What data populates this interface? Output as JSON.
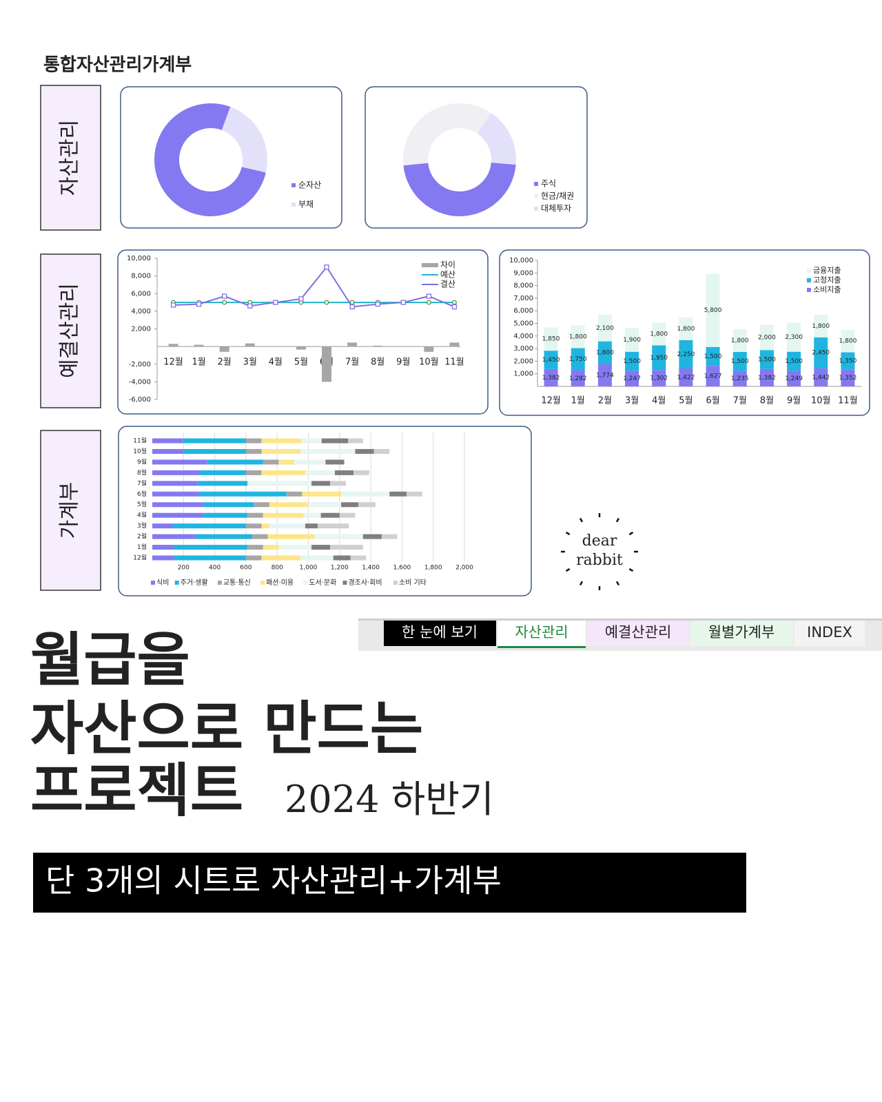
{
  "header": {
    "title": "통합자산관리가계부"
  },
  "sections": [
    "자산관리",
    "예결산관리",
    "가계부"
  ],
  "chart_data": [
    {
      "type": "donut",
      "categories": [
        "순자산",
        "부채"
      ],
      "values": [
        77,
        23
      ],
      "colors": [
        "#8479f0",
        "#e3e1fa"
      ]
    },
    {
      "type": "donut",
      "categories": [
        "주식",
        "현금/채권",
        "대체투자"
      ],
      "values": [
        47,
        36,
        17
      ],
      "colors": [
        "#8479f0",
        "#efeff4",
        "#e3e1fa"
      ]
    },
    {
      "type": "combo",
      "categories": [
        "12월",
        "1월",
        "2월",
        "3월",
        "4월",
        "5월",
        "6월",
        "7월",
        "8월",
        "9월",
        "10월",
        "11월"
      ],
      "series": [
        {
          "name": "차이",
          "kind": "bar",
          "color": "#a6a6a6",
          "values": [
            300,
            200,
            -600,
            350,
            0,
            -350,
            -4000,
            450,
            100,
            0,
            -600,
            450
          ]
        },
        {
          "name": "예산",
          "kind": "line",
          "marker": "circle",
          "color": "#1fb5c9",
          "values": [
            5000,
            5000,
            5000,
            5000,
            5000,
            5000,
            5000,
            5000,
            5000,
            5000,
            5000,
            5000
          ]
        },
        {
          "name": "결산",
          "kind": "line",
          "marker": "square",
          "color": "#7c6fe0",
          "values": [
            4700,
            4800,
            5700,
            4600,
            5000,
            5400,
            9000,
            4500,
            4800,
            5000,
            5700,
            4500
          ]
        }
      ],
      "ylim": [
        -6000,
        10000
      ],
      "yticks": [
        {
          "value": -6000,
          "label": "-6,000"
        },
        {
          "value": -4000,
          "label": "-4,000"
        },
        {
          "value": -2000,
          "label": "-2,000"
        },
        {
          "value": 2000,
          "label": "2,000"
        },
        {
          "value": 4000,
          "label": "4,000"
        },
        {
          "value": 6000,
          "label": "6,000"
        },
        {
          "value": 8000,
          "label": "8,000"
        },
        {
          "value": 10000,
          "label": "10,000"
        }
      ]
    },
    {
      "type": "stacked_bar",
      "categories": [
        "12월",
        "1월",
        "2월",
        "3월",
        "4월",
        "5월",
        "6월",
        "7월",
        "8월",
        "9월",
        "10월",
        "11월"
      ],
      "series": [
        {
          "name": "소비지출",
          "color": "#8479f0",
          "values": [
            1382,
            1282,
            1774,
            1247,
            1302,
            1422,
            1627,
            1235,
            1382,
            1249,
            1442,
            1352
          ],
          "value_labels": [
            "1,382",
            "1,282",
            "1,774",
            "1,247",
            "1,302",
            "1,422",
            "1,627",
            "1,235",
            "1,382",
            "1,249",
            "1,442",
            "1,352"
          ]
        },
        {
          "name": "고정지출",
          "color": "#1fb5e0",
          "values": [
            1450,
            1750,
            1800,
            1500,
            1950,
            2250,
            1500,
            1500,
            1500,
            1500,
            2450,
            1350
          ],
          "value_labels": [
            "1,450",
            "1,750",
            "1,800",
            "1,500",
            "1,950",
            "2,250",
            "1,500",
            "1,500",
            "1,500",
            "1,500",
            "2,450",
            "1,350"
          ]
        },
        {
          "name": "금융지출",
          "color": "#e4f6f0",
          "values": [
            1850,
            1800,
            2100,
            1900,
            1800,
            1800,
            5800,
            1800,
            2000,
            2300,
            1800,
            1800
          ],
          "value_labels": [
            "1,850",
            "1,800",
            "2,100",
            "1,900",
            "1,800",
            "1,800",
            "5,800",
            "1,800",
            "2,000",
            "2,300",
            "1,800",
            "1,800"
          ]
        }
      ],
      "ylim": [
        0,
        10000
      ],
      "yticks": [
        {
          "value": 1000,
          "label": "1,000"
        },
        {
          "value": 2000,
          "label": "2,000"
        },
        {
          "value": 3000,
          "label": "3,000"
        },
        {
          "value": 4000,
          "label": "4,000"
        },
        {
          "value": 5000,
          "label": "5,000"
        },
        {
          "value": 6000,
          "label": "6,000"
        },
        {
          "value": 7000,
          "label": "7,000"
        },
        {
          "value": 8000,
          "label": "8,000"
        },
        {
          "value": 9000,
          "label": "9,000"
        },
        {
          "value": 10000,
          "label": "10,000"
        }
      ]
    },
    {
      "type": "stacked_barh",
      "categories": [
        "12월",
        "1월",
        "2월",
        "3월",
        "4월",
        "5월",
        "6월",
        "7월",
        "8월",
        "9월",
        "10월",
        "11월"
      ],
      "series": [
        {
          "name": "식비",
          "color": "#8479f0",
          "values": [
            140,
            140,
            280,
            130,
            330,
            330,
            300,
            290,
            300,
            350,
            200,
            195
          ]
        },
        {
          "name": "주거·생활",
          "color": "#1fb5e0",
          "values": [
            460,
            470,
            360,
            470,
            280,
            320,
            560,
            320,
            300,
            360,
            400,
            405
          ]
        },
        {
          "name": "교통·통신",
          "color": "#a6a6a6",
          "values": [
            100,
            100,
            100,
            100,
            100,
            100,
            100,
            0,
            100,
            100,
            100,
            100
          ]
        },
        {
          "name": "패션·미용",
          "color": "#fde68a",
          "values": [
            250,
            100,
            300,
            50,
            260,
            250,
            250,
            0,
            280,
            100,
            250,
            255
          ]
        },
        {
          "name": "도서·문화",
          "color": "#e6f6f2",
          "values": [
            210,
            210,
            310,
            230,
            110,
            210,
            310,
            410,
            190,
            200,
            350,
            130
          ]
        },
        {
          "name": "경조사·회비",
          "color": "#7f7f7f",
          "values": [
            110,
            120,
            120,
            80,
            120,
            110,
            110,
            120,
            120,
            120,
            120,
            170
          ]
        },
        {
          "name": "소비 기타",
          "color": "#d0d0d0",
          "values": [
            100,
            210,
            100,
            200,
            100,
            110,
            100,
            100,
            100,
            0,
            100,
            95
          ]
        }
      ],
      "xlim": [
        0,
        2000
      ],
      "xticks": [
        200,
        400,
        600,
        800,
        {
          "value": 1000,
          "label": "1,000"
        },
        {
          "value": 1200,
          "label": "1,200"
        },
        {
          "value": 1400,
          "label": "1,400"
        },
        {
          "value": 1600,
          "label": "1,600"
        },
        {
          "value": 1800,
          "label": "1,800"
        },
        {
          "value": 2000,
          "label": "2,000"
        }
      ],
      "grid": true
    }
  ],
  "tabs": [
    "한 눈에 보기",
    "자산관리",
    "예결산관리",
    "월별가계부",
    "INDEX"
  ],
  "headline": {
    "lines": [
      "월급을",
      "자산으로 만드는",
      "프로젝트"
    ],
    "tag": "2024 하반기"
  },
  "banner": "단 3개의 시트로 자산관리+가계부",
  "logo": [
    "dear",
    "rabbit"
  ]
}
